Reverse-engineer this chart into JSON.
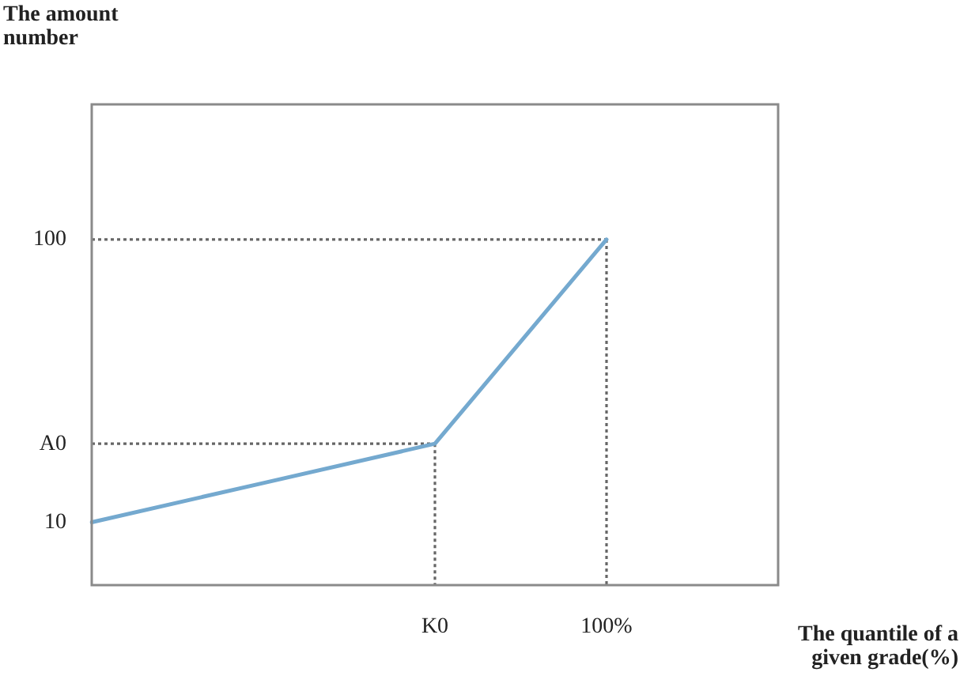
{
  "chart_data": {
    "type": "line",
    "xlabel": "The quantile of a given grade(%)",
    "ylabel": "The amount number",
    "categories": [
      null,
      null,
      "K0",
      "100%",
      null
    ],
    "ylim": [
      -10,
      143
    ],
    "yticks": [
      10,
      {
        "value": 35,
        "label": "A0"
      },
      100
    ],
    "grid": false,
    "legend": false,
    "marker": "none",
    "series": [
      {
        "values": [
          10,
          22.5,
          35,
          100,
          null
        ],
        "color": "#74a9cf",
        "line_style": "solid"
      },
      {
        "values": [
          35,
          35,
          35,
          null,
          null
        ],
        "color": "#666666",
        "line_style": "dotted"
      },
      {
        "x": [
          "K0",
          "K0"
        ],
        "values": [
          35,
          -10
        ],
        "color": "#666666",
        "line_style": "dotted"
      },
      {
        "values": [
          100,
          100,
          100,
          100,
          null
        ],
        "color": "#666666",
        "line_style": "dotted"
      },
      {
        "x": [
          "100%",
          "100%"
        ],
        "values": [
          100,
          -10
        ],
        "color": "#666666",
        "line_style": "dotted"
      }
    ]
  }
}
